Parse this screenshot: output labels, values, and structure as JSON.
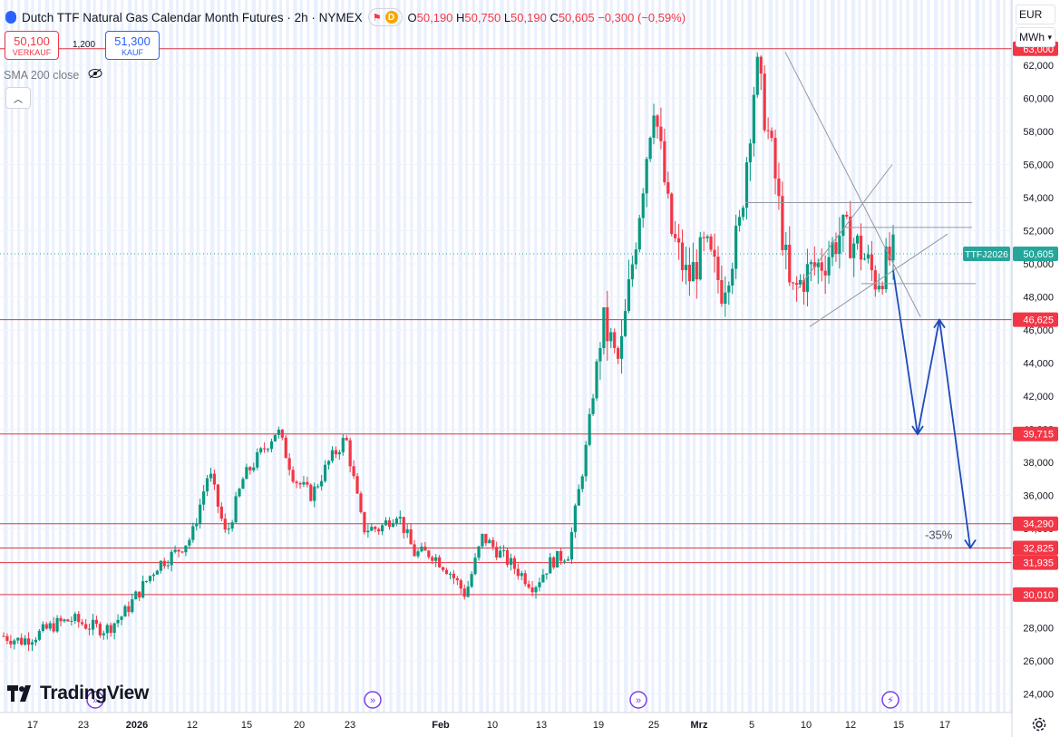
{
  "header": {
    "title": "Dutch TTF Natural Gas Calendar Month Futures · 2h · NYMEX",
    "interval_badge": "D",
    "ohlc": {
      "o_label": "O",
      "o": "50,190",
      "h_label": "H",
      "h": "50,750",
      "l_label": "L",
      "l": "50,190",
      "c_label": "C",
      "c": "50,605",
      "change": "−0,300 (−0,59%)"
    }
  },
  "trade": {
    "sell_price": "50,100",
    "sell_label": "VERKAUF",
    "spread": "1,200",
    "buy_price": "51,300",
    "buy_label": "KAUF"
  },
  "indicator": {
    "label": "SMA 200 close"
  },
  "units": {
    "currency": "EUR",
    "unit": "MWh"
  },
  "branding": {
    "logo_text": "TradingView"
  },
  "colors": {
    "up": "#089981",
    "down": "#f23645",
    "level": "#e0363f",
    "arrow": "#1e4bb8",
    "price_tag": "#26a69a",
    "level_tag": "#f23645",
    "weekend": "#eaf0fd"
  },
  "chart_data": {
    "type": "candlestick",
    "symbol_tag": "TTFJ2026",
    "last_price": "50,605",
    "ylim": [
      23000,
      64000
    ],
    "yticks": [
      "24,000",
      "26,000",
      "28,000",
      "30,000",
      "32,000",
      "34,000",
      "36,000",
      "38,000",
      "40,000",
      "42,000",
      "44,000",
      "46,000",
      "48,000",
      "50,000",
      "52,000",
      "54,000",
      "56,000",
      "58,000",
      "60,000",
      "62,000"
    ],
    "xticks": [
      "17",
      "23",
      "2026",
      "12",
      "15",
      "20",
      "23",
      "Feb",
      "10",
      "13",
      "19",
      "25",
      "Mrz",
      "5",
      "10",
      "12",
      "15",
      "17"
    ],
    "horizontal_levels": [
      "63,000",
      "46,625",
      "39,715",
      "34,290",
      "32,825",
      "31,935",
      "30,010"
    ],
    "annotation": "-35%",
    "price_path": [
      {
        "t": "Dec 17",
        "v": 27.5
      },
      {
        "t": "Dec 20",
        "v": 27.2
      },
      {
        "t": "Dec 23",
        "v": 27.6
      },
      {
        "t": "Dec 27",
        "v": 28.2
      },
      {
        "t": "Dec 31",
        "v": 28.5
      },
      {
        "t": "Jan 2",
        "v": 28.1
      },
      {
        "t": "Jan 5",
        "v": 27.9
      },
      {
        "t": "Jan 8",
        "v": 28.8
      },
      {
        "t": "Jan 12",
        "v": 30.3
      },
      {
        "t": "Jan 13",
        "v": 31.8
      },
      {
        "t": "Jan 15",
        "v": 32.5
      },
      {
        "t": "Jan 17",
        "v": 33.5
      },
      {
        "t": "Jan 19",
        "v": 37.5
      },
      {
        "t": "Jan 20",
        "v": 33.5
      },
      {
        "t": "Jan 22",
        "v": 37.0
      },
      {
        "t": "Jan 23",
        "v": 38.5
      },
      {
        "t": "Jan 26",
        "v": 40.0
      },
      {
        "t": "Jan 27",
        "v": 37.0
      },
      {
        "t": "Jan 29",
        "v": 36.0
      },
      {
        "t": "Jan 31",
        "v": 38.0
      },
      {
        "t": "Feb 2",
        "v": 39.5
      },
      {
        "t": "Feb 4",
        "v": 34.0
      },
      {
        "t": "Feb 6",
        "v": 34.0
      },
      {
        "t": "Feb 8",
        "v": 35.0
      },
      {
        "t": "Feb 10",
        "v": 32.5
      },
      {
        "t": "Feb 13",
        "v": 32.5
      },
      {
        "t": "Feb 16",
        "v": 31.5
      },
      {
        "t": "Feb 18",
        "v": 30.0
      },
      {
        "t": "Feb 19",
        "v": 33.5
      },
      {
        "t": "Feb 20",
        "v": 32.5
      },
      {
        "t": "Feb 23",
        "v": 31.5
      },
      {
        "t": "Feb 25",
        "v": 30.5
      },
      {
        "t": "Feb 27",
        "v": 32.0
      },
      {
        "t": "Feb 28",
        "v": 32.5
      },
      {
        "t": "Mar 2",
        "v": 38.5
      },
      {
        "t": "Mar 2b",
        "v": 46.5
      },
      {
        "t": "Mar 3",
        "v": 44.0
      },
      {
        "t": "Mar 4",
        "v": 52.0
      },
      {
        "t": "Mar 4b",
        "v": 60.0
      },
      {
        "t": "Mar 5",
        "v": 52.0
      },
      {
        "t": "Mar 5b",
        "v": 49.0
      },
      {
        "t": "Mar 6",
        "v": 51.0
      },
      {
        "t": "Mar 6b",
        "v": 48.5
      },
      {
        "t": "Mar 7",
        "v": 52.0
      },
      {
        "t": "Mar 9",
        "v": 62.0
      },
      {
        "t": "Mar 9b",
        "v": 56.0
      },
      {
        "t": "Mar 10",
        "v": 48.0
      },
      {
        "t": "Mar 11",
        "v": 49.5
      },
      {
        "t": "Mar 11b",
        "v": 50.2
      },
      {
        "t": "Mar 12",
        "v": 52.0
      },
      {
        "t": "Mar 13",
        "v": 51.0
      },
      {
        "t": "Mar 13b",
        "v": 49.0
      },
      {
        "t": "Mar 14",
        "v": 50.6
      }
    ],
    "forecast_path": [
      {
        "label": "start",
        "v": 49.6
      },
      {
        "label": "low1",
        "v": 39.7
      },
      {
        "label": "rebound",
        "v": 46.625
      },
      {
        "label": "target",
        "v": 32.825
      }
    ]
  }
}
